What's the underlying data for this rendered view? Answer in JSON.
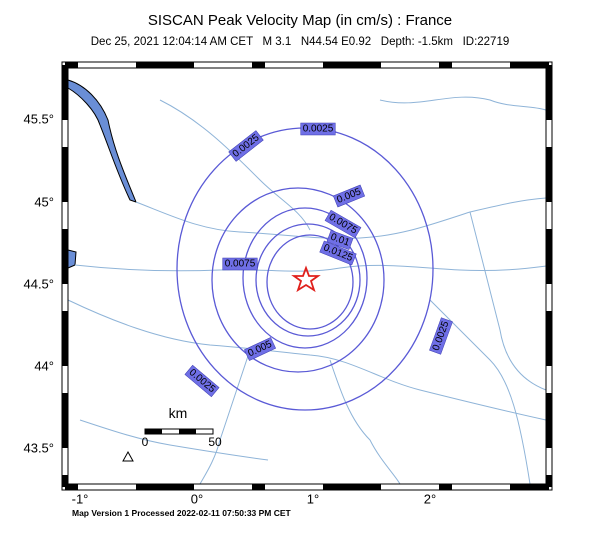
{
  "header": {
    "title": "SISCAN Peak Velocity Map (in cm/s) : France",
    "subtitle": "Dec 25, 2021 12:04:14 AM CET   M 3.1   N44.54 E0.92   Depth: -1.5km   ID:22719"
  },
  "map": {
    "y_labels": [
      "45.5°",
      "45°",
      "44.5°",
      "44°",
      "43.5°"
    ],
    "x_labels": [
      "-1°",
      "0°",
      "1°",
      "2°"
    ],
    "contour_labels": [
      "0.0025",
      "0.0025",
      "0.0025",
      "0.0025",
      "0.005",
      "0.005",
      "0.0075",
      "0.0075",
      "0.01",
      "0.0125"
    ],
    "scale": {
      "title": "km",
      "labels": [
        "0",
        "50"
      ]
    }
  },
  "footer": "Map Version 1 Processed 2022-02-11 07:50:33 PM CET"
}
